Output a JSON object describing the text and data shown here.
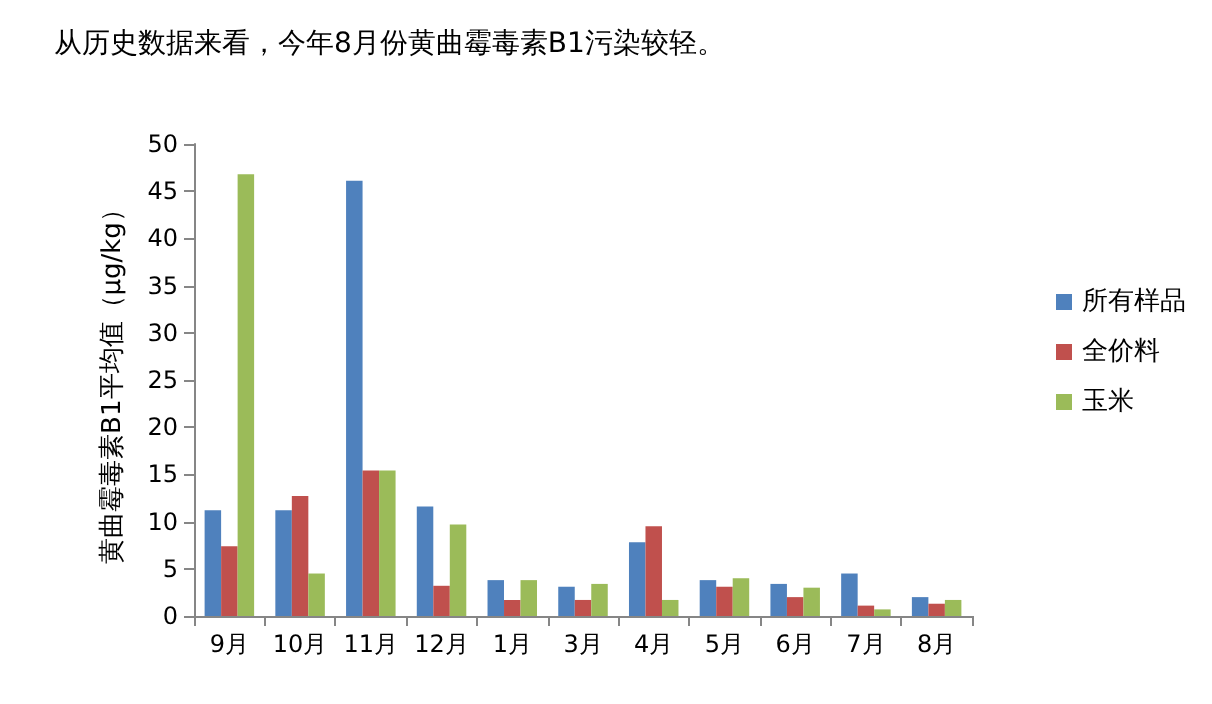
{
  "chart_data": {
    "type": "bar",
    "title": "从历史数据来看，今年8月份黄曲霉毒素B1污染较轻。",
    "ylabel": "黄曲霉毒素B1平均值（μg/kg）",
    "categories": [
      "9月",
      "10月",
      "11月",
      "12月",
      "1月",
      "3月",
      "4月",
      "5月",
      "6月",
      "7月",
      "8月"
    ],
    "series": [
      {
        "name": "所有样品",
        "color": "#4f81bd",
        "values": [
          11.2,
          11.2,
          46.1,
          11.6,
          3.8,
          3.1,
          7.8,
          3.8,
          3.4,
          4.5,
          2.0
        ]
      },
      {
        "name": "全价料",
        "color": "#c0504d",
        "values": [
          7.4,
          12.7,
          15.4,
          3.2,
          1.7,
          1.7,
          9.5,
          3.1,
          2.0,
          1.1,
          1.3
        ]
      },
      {
        "name": "玉米",
        "color": "#9bbb59",
        "values": [
          46.8,
          4.5,
          15.4,
          9.7,
          3.8,
          3.4,
          1.7,
          4.0,
          3.0,
          0.7,
          1.7
        ]
      }
    ],
    "ylim": [
      0,
      50
    ],
    "yticks": [
      0,
      5,
      10,
      15,
      20,
      25,
      30,
      35,
      40,
      45,
      50
    ],
    "grid": false,
    "legend": "right"
  }
}
